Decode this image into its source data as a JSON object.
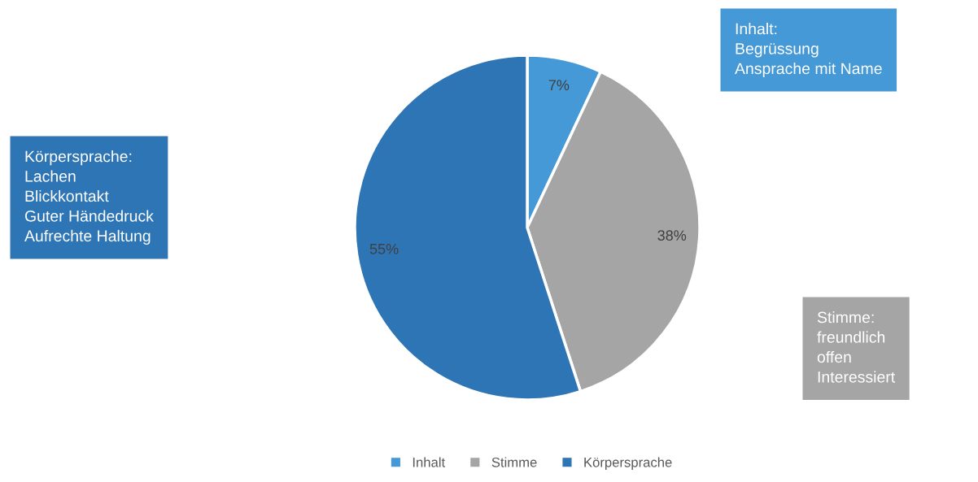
{
  "chart_data": {
    "type": "pie",
    "categories": [
      "Inhalt",
      "Stimme",
      "Körpersprache"
    ],
    "values": [
      7,
      38,
      55
    ],
    "value_labels": [
      "7%",
      "38%",
      "55%"
    ],
    "colors": [
      "#4599d6",
      "#a5a5a5",
      "#2e75b6"
    ],
    "legend": "bottom",
    "annotations": [
      "Inhalt:\nBegrüssung\nAnsprache mit Name",
      "Stimme:\nfreundlich\noffen\nInteressiert",
      "Körpersprache:\nLachen\nBlickkontakt\nGuter Händedruck\nAufrechte Haltung"
    ]
  }
}
